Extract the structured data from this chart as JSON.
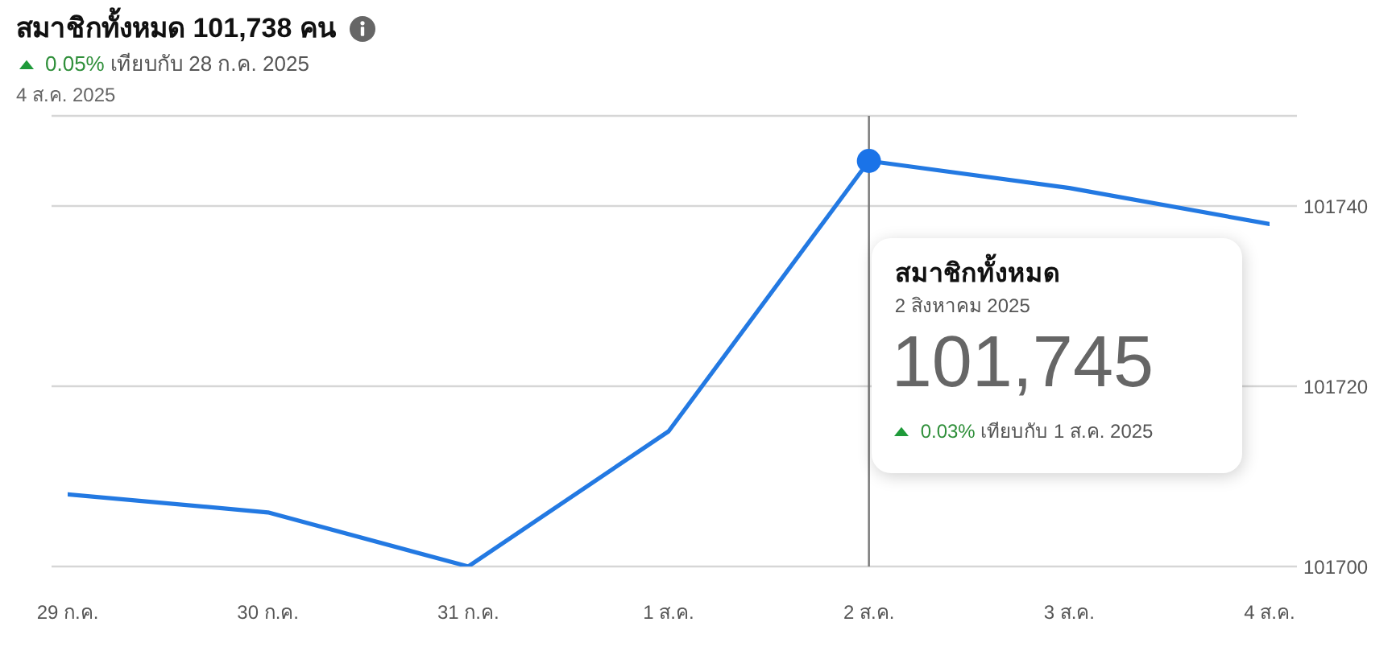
{
  "chart_data": {
    "type": "line",
    "title": "สมาชิกทั้งหมด 101,738 คน",
    "subtitle": "0.05% เทียบกับ 28 ก.ค. 2025",
    "categories": [
      "29 ก.ค.",
      "30 ก.ค.",
      "31 ก.ค.",
      "1 ส.ค.",
      "2 ส.ค.",
      "3 ส.ค.",
      "4 ส.ค."
    ],
    "series": [
      {
        "color": "#2379e2",
        "values": [
          101708,
          101706,
          101700,
          101715,
          101745,
          101742,
          101738
        ]
      },
      {
        "type": "scatter",
        "x": [
          "2 ส.ค."
        ],
        "values": [
          101745
        ],
        "color": "#1a73e8",
        "marker": "circle"
      }
    ],
    "ylim": [
      101700,
      101750
    ],
    "yticks": [
      101700,
      101720,
      101740
    ],
    "grid": "y",
    "marker": "none",
    "ref_lines": [
      {
        "axis": "x",
        "value": "2 ส.ค.",
        "color": "#777777"
      }
    ],
    "annotations": [
      "4 ส.ค. 2025",
      "สมาชิกทั้งหมด",
      "2 สิงหาคม 2025",
      {
        "text": "101,745",
        "x": "2 ส.ค.",
        "y": 101745
      },
      "0.03% เทียบกับ 1 ส.ค. 2025"
    ]
  }
}
